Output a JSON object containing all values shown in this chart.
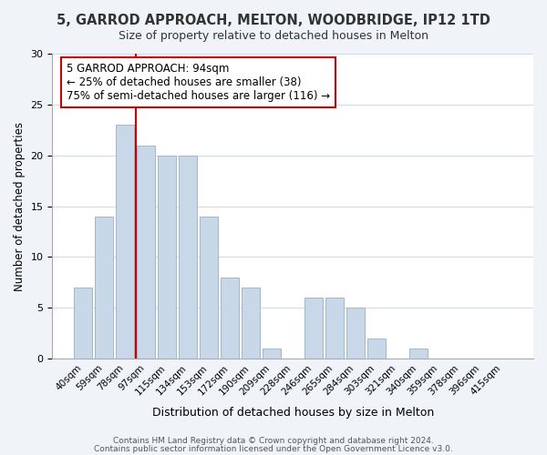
{
  "title": "5, GARROD APPROACH, MELTON, WOODBRIDGE, IP12 1TD",
  "subtitle": "Size of property relative to detached houses in Melton",
  "xlabel": "Distribution of detached houses by size in Melton",
  "ylabel": "Number of detached properties",
  "bar_labels": [
    "40sqm",
    "59sqm",
    "78sqm",
    "97sqm",
    "115sqm",
    "134sqm",
    "153sqm",
    "172sqm",
    "190sqm",
    "209sqm",
    "228sqm",
    "246sqm",
    "265sqm",
    "284sqm",
    "303sqm",
    "321sqm",
    "340sqm",
    "359sqm",
    "378sqm",
    "396sqm",
    "415sqm"
  ],
  "bar_values": [
    7,
    14,
    23,
    21,
    20,
    20,
    14,
    8,
    7,
    1,
    0,
    6,
    6,
    5,
    2,
    0,
    1,
    0,
    0,
    0,
    0
  ],
  "bar_color": "#c8d8e8",
  "bar_edge_color": "#a0b8cc",
  "vline_x": 2.5,
  "vline_color": "#cc0000",
  "ylim": [
    0,
    30
  ],
  "yticks": [
    0,
    5,
    10,
    15,
    20,
    25,
    30
  ],
  "annotation_title": "5 GARROD APPROACH: 94sqm",
  "annotation_line1": "← 25% of detached houses are smaller (38)",
  "annotation_line2": "75% of semi-detached houses are larger (116) →",
  "annotation_box_color": "#ffffff",
  "annotation_box_edge": "#cc0000",
  "footer_line1": "Contains HM Land Registry data © Crown copyright and database right 2024.",
  "footer_line2": "Contains public sector information licensed under the Open Government Licence v3.0.",
  "background_color": "#f0f4f8",
  "plot_background": "#ffffff",
  "grid_color": "#d0dce8"
}
